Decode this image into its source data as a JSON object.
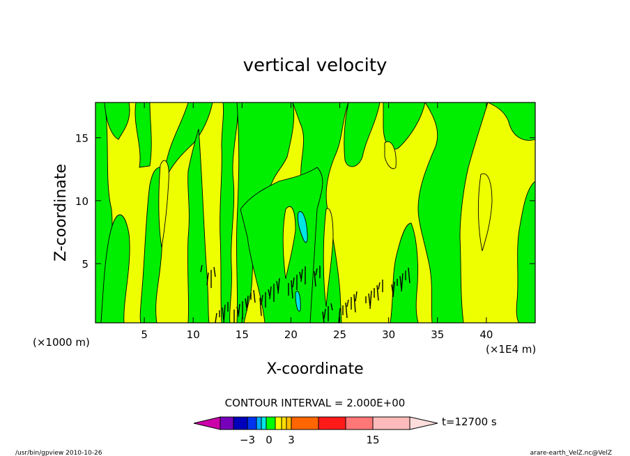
{
  "chart_data": {
    "type": "heatmap",
    "title": "vertical velocity",
    "xlabel": "X-coordinate",
    "ylabel": "Z-coordinate",
    "x_unit_left": "(×1000 m)",
    "x_unit_right": "(×1E4 m)",
    "xlim": [
      0,
      45
    ],
    "ylim": [
      0.3,
      17.8
    ],
    "x_ticks": [
      "5",
      "10",
      "15",
      "20",
      "25",
      "30",
      "35",
      "40"
    ],
    "y_ticks": [
      "5",
      "10",
      "15"
    ],
    "x_tick_values": [
      5,
      10,
      15,
      20,
      25,
      30,
      35,
      40
    ],
    "y_tick_values": [
      5,
      10,
      15
    ],
    "contour_interval_text": "CONTOUR INTERVAL = 2.000E+00",
    "time_label": "t=12700 s",
    "colorbar": {
      "levels": [
        "−3",
        "0",
        "3",
        "15"
      ],
      "colors": [
        "#cc00aa",
        "#7700bb",
        "#0000bb",
        "#0033ee",
        "#00aaff",
        "#00e5e5",
        "#00ff00",
        "#ffff00",
        "#ffdd00",
        "#ffbb00",
        "#ff6600",
        "#ff1a1a",
        "#ff7777",
        "#ffbbbb",
        "#ffdddd"
      ]
    },
    "footer_left": "/usr/bin/gpview   2010-10-26",
    "footer_right": "arare-earth_VelZ.nc@VelZ",
    "background_color": "#eeff00",
    "positive_band_color": "#00ee00"
  }
}
